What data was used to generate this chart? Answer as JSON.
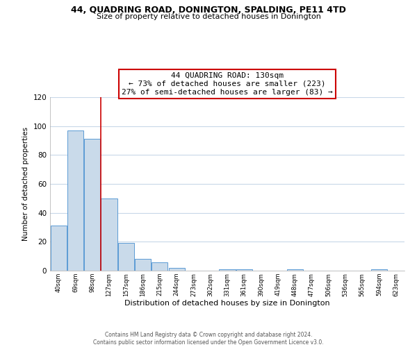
{
  "title": "44, QUADRING ROAD, DONINGTON, SPALDING, PE11 4TD",
  "subtitle": "Size of property relative to detached houses in Donington",
  "xlabel": "Distribution of detached houses by size in Donington",
  "ylabel": "Number of detached properties",
  "bar_labels": [
    "40sqm",
    "69sqm",
    "98sqm",
    "127sqm",
    "157sqm",
    "186sqm",
    "215sqm",
    "244sqm",
    "273sqm",
    "302sqm",
    "331sqm",
    "361sqm",
    "390sqm",
    "419sqm",
    "448sqm",
    "477sqm",
    "506sqm",
    "536sqm",
    "565sqm",
    "594sqm",
    "623sqm"
  ],
  "bar_values": [
    31,
    97,
    91,
    50,
    19,
    8,
    6,
    2,
    0,
    0,
    1,
    1,
    0,
    0,
    1,
    0,
    0,
    0,
    0,
    1,
    0
  ],
  "bar_color": "#c9daea",
  "bar_edge_color": "#5b9bd5",
  "vline_color": "#cc0000",
  "annotation_title": "44 QUADRING ROAD: 130sqm",
  "annotation_line1": "← 73% of detached houses are smaller (223)",
  "annotation_line2": "27% of semi-detached houses are larger (83) →",
  "annotation_box_color": "#ffffff",
  "annotation_border_color": "#cc0000",
  "ylim": [
    0,
    120
  ],
  "yticks": [
    0,
    20,
    40,
    60,
    80,
    100,
    120
  ],
  "grid_color": "#c8d8e8",
  "background_color": "#ffffff",
  "footer_line1": "Contains HM Land Registry data © Crown copyright and database right 2024.",
  "footer_line2": "Contains public sector information licensed under the Open Government Licence v3.0."
}
